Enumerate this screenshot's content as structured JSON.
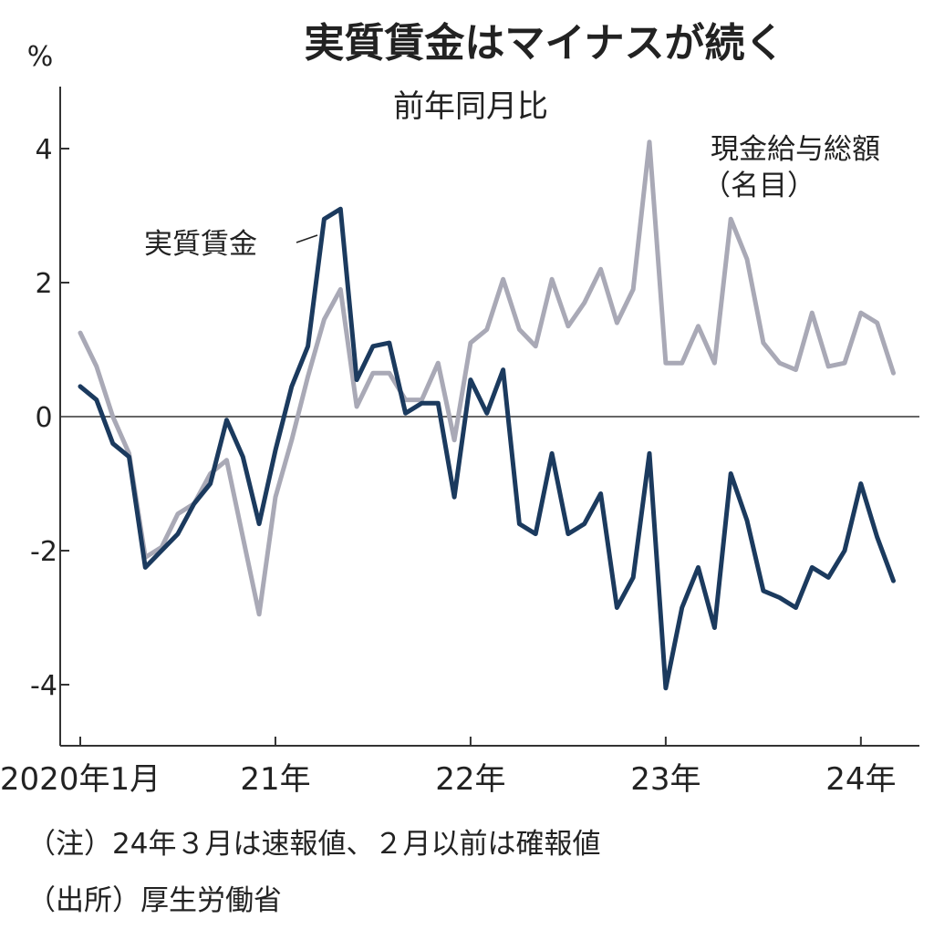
{
  "chart_data": {
    "type": "line",
    "title": "実質賃金はマイナスが続く",
    "subtitle": "前年同月比",
    "ylabel": "%",
    "ylim": [
      -4.8,
      4.9
    ],
    "yticks": [
      4,
      2,
      0,
      -2,
      -4
    ],
    "ytick_labels": [
      "4",
      "2",
      "0",
      "-2",
      "-4"
    ],
    "x_start": "2020-01",
    "x_end": "2024-03",
    "xtick_labels": [
      {
        "label": "2020年1月",
        "index": 0
      },
      {
        "label": "21年",
        "index": 12
      },
      {
        "label": "22年",
        "index": 24
      },
      {
        "label": "23年",
        "index": 36
      },
      {
        "label": "24年",
        "index": 48
      }
    ],
    "series": [
      {
        "name": "現金給与総額（名目）",
        "label_line1": "現金給与総額",
        "label_line2": "（名目）",
        "color": "#a9a9b6",
        "values": [
          1.25,
          0.75,
          0.0,
          -0.55,
          -2.1,
          -1.95,
          -1.45,
          -1.3,
          -0.85,
          -0.65,
          -1.8,
          -2.95,
          -1.2,
          -0.35,
          0.6,
          1.45,
          1.9,
          0.15,
          0.65,
          0.65,
          0.25,
          0.25,
          0.8,
          -0.35,
          1.1,
          1.3,
          2.05,
          1.3,
          1.05,
          2.05,
          1.35,
          1.7,
          2.2,
          1.4,
          1.9,
          4.1,
          0.8,
          0.8,
          1.35,
          0.8,
          2.95,
          2.35,
          1.1,
          0.8,
          0.7,
          1.55,
          0.75,
          0.8,
          1.55,
          1.4,
          0.65
        ]
      },
      {
        "name": "実質賃金",
        "color": "#1b3a5e",
        "values": [
          0.45,
          0.25,
          -0.4,
          -0.6,
          -2.25,
          -2.0,
          -1.75,
          -1.3,
          -1.0,
          -0.05,
          -0.6,
          -1.6,
          -0.5,
          0.45,
          1.05,
          2.95,
          3.1,
          0.55,
          1.05,
          1.1,
          0.05,
          0.2,
          0.2,
          -1.2,
          0.55,
          0.05,
          0.7,
          -1.6,
          -1.75,
          -0.55,
          -1.75,
          -1.6,
          -1.15,
          -2.85,
          -2.4,
          -0.55,
          -4.05,
          -2.85,
          -2.25,
          -3.15,
          -0.85,
          -1.55,
          -2.6,
          -2.7,
          -2.85,
          -2.25,
          -2.4,
          -2.0,
          -1.0,
          -1.8,
          -2.45
        ]
      }
    ],
    "notes": [
      "（注）24年３月は速報値、２月以前は確報値",
      "（出所）厚生労働省"
    ]
  }
}
